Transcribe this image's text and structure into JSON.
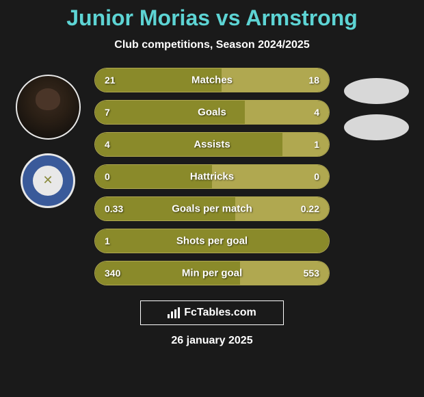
{
  "title": "Junior Morias vs Armstrong",
  "subtitle": "Club competitions, Season 2024/2025",
  "date": "26 january 2025",
  "watermark": {
    "text": "FcTables.com"
  },
  "colors": {
    "background": "#1a1a1a",
    "title": "#5dd4d4",
    "text": "#ffffff",
    "bar_left": "#8a8a2a",
    "bar_right": "#b0a850",
    "bar_border": "#b0a850",
    "badge_bg": "#3a5a9a",
    "placeholder": "#d8d8d8"
  },
  "stats": [
    {
      "label": "Matches",
      "left_value": "21",
      "right_value": "18",
      "left_pct": 54
    },
    {
      "label": "Goals",
      "left_value": "7",
      "right_value": "4",
      "left_pct": 64
    },
    {
      "label": "Assists",
      "left_value": "4",
      "right_value": "1",
      "left_pct": 80
    },
    {
      "label": "Hattricks",
      "left_value": "0",
      "right_value": "0",
      "left_pct": 50
    },
    {
      "label": "Goals per match",
      "left_value": "0.33",
      "right_value": "0.22",
      "left_pct": 60
    },
    {
      "label": "Shots per goal",
      "left_value": "1",
      "right_value": "",
      "left_pct": 100
    },
    {
      "label": "Min per goal",
      "left_value": "340",
      "right_value": "553",
      "left_pct": 62
    }
  ]
}
